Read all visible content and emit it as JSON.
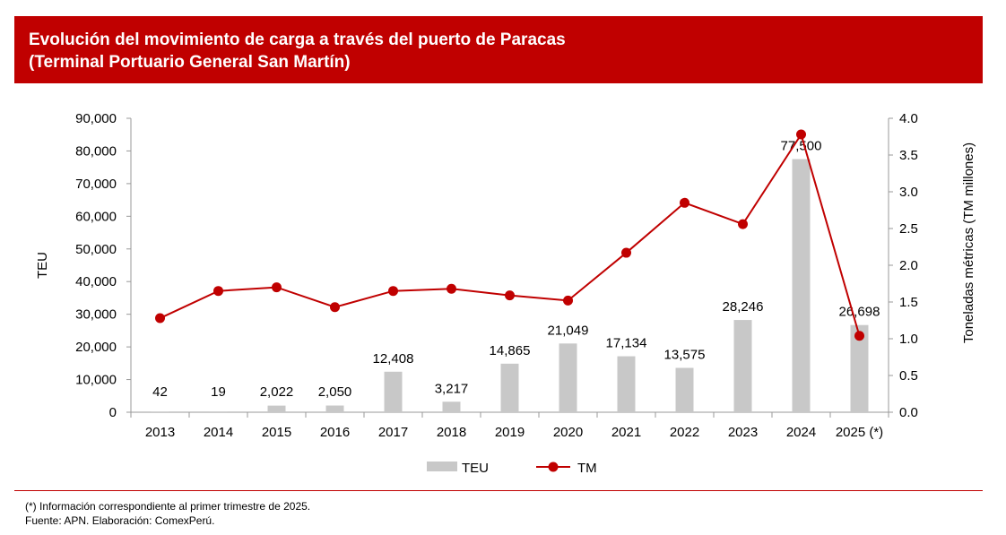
{
  "header": {
    "title_line1": "Evolución del movimiento de carga a través del puerto de Paracas",
    "title_line2": "(Terminal Portuario General San Martín)"
  },
  "chart_data": {
    "type": "bar+line",
    "categories": [
      "2013",
      "2014",
      "2015",
      "2016",
      "2017",
      "2018",
      "2019",
      "2020",
      "2021",
      "2022",
      "2023",
      "2024",
      "2025 (*)"
    ],
    "series": [
      {
        "name": "TEU",
        "type": "bar",
        "axis": "left",
        "color": "#c8c8c8",
        "values": [
          42,
          19,
          2022,
          2050,
          12408,
          3217,
          14865,
          21049,
          17134,
          13575,
          28246,
          77500,
          26698
        ],
        "labels": [
          "42",
          "19",
          "2,022",
          "2,050",
          "12,408",
          "3,217",
          "14,865",
          "21,049",
          "17,134",
          "13,575",
          "28,246",
          "77,500",
          "26,698"
        ]
      },
      {
        "name": "TM",
        "type": "line",
        "axis": "right",
        "color": "#c00000",
        "values": [
          1.28,
          1.65,
          1.7,
          1.43,
          1.65,
          1.68,
          1.59,
          1.52,
          2.17,
          2.85,
          2.56,
          3.78,
          1.04
        ]
      }
    ],
    "ylabel": "TEU",
    "y2label": "Toneladas métricas (TM millones)",
    "ylim": [
      0,
      90000
    ],
    "y2lim": [
      0,
      4
    ],
    "yticks": [
      "0",
      "10,000",
      "20,000",
      "30,000",
      "40,000",
      "50,000",
      "60,000",
      "70,000",
      "80,000",
      "90,000"
    ],
    "y2ticks": [
      "0.0",
      "0.5",
      "1.0",
      "1.5",
      "2.0",
      "2.5",
      "3.0",
      "3.5",
      "4.0"
    ],
    "legend": "bottom"
  },
  "footer": {
    "note": "(*) Información correspondiente al primer trimestre de 2025.",
    "source": "Fuente: APN. Elaboración: ComexPerú."
  }
}
